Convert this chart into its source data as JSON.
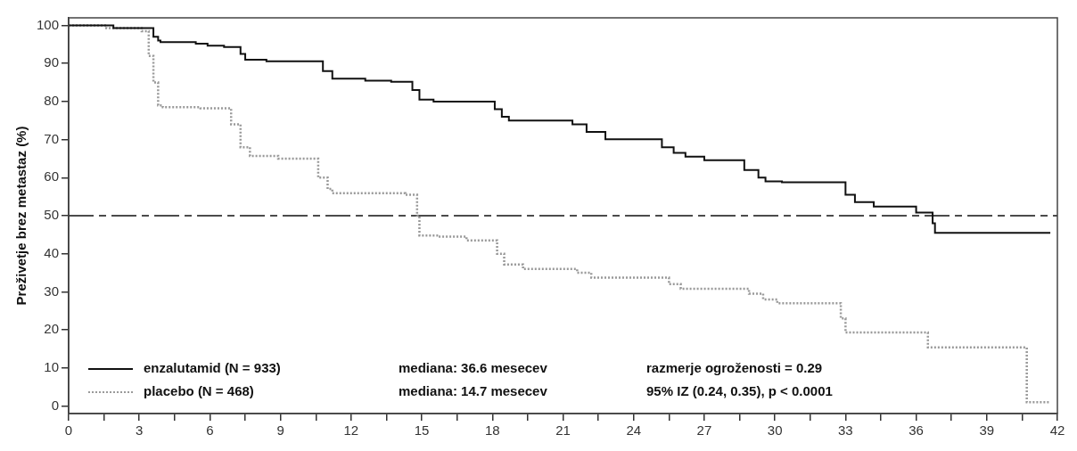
{
  "chart_data": {
    "type": "step",
    "ylabel": "Preživetje brez metastaz (%)",
    "xlim": [
      0,
      42
    ],
    "xticks": [
      0,
      {
        "value": 1.5,
        "label": null
      },
      3,
      {
        "value": 4.5,
        "label": null
      },
      6,
      {
        "value": 7.5,
        "label": null
      },
      9,
      {
        "value": 10.5,
        "label": null
      },
      12,
      {
        "value": 13.5,
        "label": null
      },
      15,
      {
        "value": 16.5,
        "label": null
      },
      18,
      {
        "value": 19.5,
        "label": null
      },
      21,
      {
        "value": 22.5,
        "label": null
      },
      24,
      {
        "value": 25.5,
        "label": null
      },
      27,
      {
        "value": 28.5,
        "label": null
      },
      30,
      {
        "value": 31.5,
        "label": null
      },
      33,
      {
        "value": 34.5,
        "label": null
      },
      36,
      {
        "value": 37.5,
        "label": null
      },
      39,
      {
        "value": 40.5,
        "label": null
      },
      42
    ],
    "ylim": [
      -2,
      102
    ],
    "yticks": [
      0,
      10,
      20,
      30,
      40,
      50,
      60,
      70,
      80,
      90,
      100
    ],
    "grid": false,
    "legend": "bottom left",
    "marker": "none",
    "series": [
      {
        "name": "enzalutamid (N = 933)",
        "color": "#111111",
        "line_style": "solid",
        "x": [
          0,
          1.9,
          3.6,
          3.8,
          3.9,
          5.4,
          5.9,
          6.6,
          7.3,
          7.5,
          8.4,
          10.8,
          11.2,
          12.6,
          13.7,
          14.6,
          14.9,
          15.5,
          18.1,
          18.4,
          18.7,
          21.4,
          22.0,
          22.8,
          25.2,
          25.7,
          26.2,
          27.0,
          28.7,
          29.3,
          29.6,
          30.3,
          33.0,
          33.4,
          34.2,
          36.0,
          36.7,
          36.8,
          41.7
        ],
        "values": [
          100,
          99.3,
          97,
          96,
          95.6,
          95.2,
          94.7,
          94.3,
          92.5,
          91,
          90.6,
          88,
          86,
          85.5,
          85.2,
          83,
          80.5,
          80,
          78,
          76,
          75,
          74,
          72,
          70.1,
          68,
          66.5,
          65.5,
          64.6,
          62,
          60,
          59,
          58.8,
          55.5,
          53.6,
          52.4,
          50.8,
          48,
          45.5,
          45.5
        ]
      },
      {
        "name": "placebo (N = 468)",
        "color": "#999999",
        "line_style": "dotted",
        "x": [
          0,
          1.6,
          3.1,
          3.4,
          3.6,
          3.8,
          4.0,
          5.6,
          6.9,
          7.3,
          7.7,
          8.9,
          10.6,
          11.0,
          11.2,
          14.3,
          14.8,
          14.9,
          15.7,
          16.9,
          18.2,
          18.5,
          19.3,
          21.6,
          22.2,
          25.5,
          26.0,
          28.9,
          29.5,
          30.1,
          32.8,
          33.0,
          36.5,
          40.7,
          41.7
        ],
        "values": [
          100,
          99.3,
          98.5,
          92,
          85,
          79,
          78.5,
          78.2,
          74,
          68,
          65.7,
          65,
          60,
          57,
          55.9,
          55.5,
          50,
          44.8,
          44.5,
          43.5,
          40,
          37.2,
          36,
          35,
          33.7,
          32,
          30.8,
          29.5,
          28,
          27,
          23,
          19.3,
          15.4,
          1,
          1
        ]
      }
    ],
    "ref_lines": [
      {
        "axis": "y",
        "value": 50,
        "color": "#111111",
        "line_style": "dashdot"
      }
    ],
    "annotations": [
      "mediana: 36.6 mesecev",
      "mediana: 14.7 mesecev",
      "razmerje ogroženosti = 0.29",
      "95% IZ (0.24, 0.35), p < 0.0001"
    ]
  }
}
